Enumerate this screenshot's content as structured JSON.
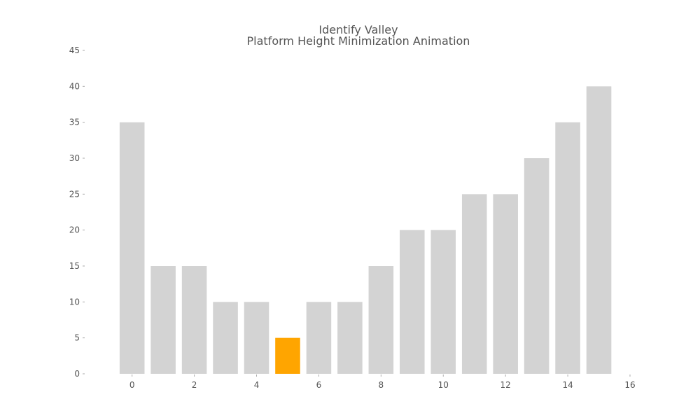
{
  "chart_data": {
    "type": "bar",
    "title": [
      "Identify Valley",
      "Platform Height Minimization Animation"
    ],
    "x": [
      0,
      1,
      2,
      3,
      4,
      5,
      6,
      7,
      8,
      9,
      10,
      11,
      12,
      13,
      14,
      15
    ],
    "values": [
      35,
      15,
      15,
      10,
      10,
      5,
      10,
      10,
      15,
      20,
      20,
      25,
      25,
      30,
      35,
      40
    ],
    "highlight_index": 5,
    "colors": {
      "bar": "#d3d3d3",
      "highlight": "#ffa500",
      "text": "#555555"
    },
    "xlim": [
      -1.5,
      16
    ],
    "ylim": [
      0,
      45
    ],
    "x_ticks": [
      0,
      2,
      4,
      6,
      8,
      10,
      12,
      14,
      16
    ],
    "y_ticks": [
      0,
      5,
      10,
      15,
      20,
      25,
      30,
      35,
      40,
      45
    ],
    "xlabel": "",
    "ylabel": "",
    "grid": false,
    "legend": "none"
  }
}
